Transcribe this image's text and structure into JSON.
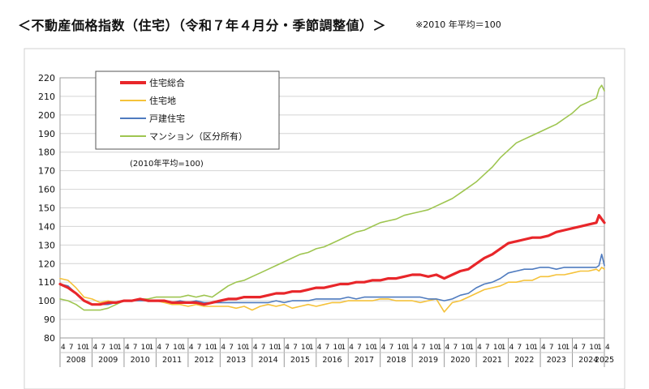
{
  "page": {
    "title": "＜不動産価格指数（住宅）（令和７年４月分・季節調整値）＞",
    "note": "※2010 年平均＝100"
  },
  "chart_data": {
    "type": "line",
    "ylim": [
      80,
      220
    ],
    "yticks": [
      80,
      90,
      100,
      110,
      120,
      130,
      140,
      150,
      160,
      170,
      180,
      190,
      200,
      210,
      220
    ],
    "grid": "horizontal",
    "legend_position": "top-left",
    "annotation": "(2010年平均=100)",
    "x_range": [
      "2008-04",
      "2025-04"
    ],
    "years": [
      "2008",
      "2009",
      "2010",
      "2011",
      "2012",
      "2013",
      "2014",
      "2015",
      "2016",
      "2017",
      "2018",
      "2019",
      "2020",
      "2021",
      "2022",
      "2023",
      "2024",
      "2025"
    ],
    "month_tick_labels": [
      "4",
      "7",
      "10",
      "1"
    ],
    "series": [
      {
        "name": "住宅総合",
        "color": "#e8262a",
        "points": [
          [
            "2008-04",
            109
          ],
          [
            "2008-07",
            107
          ],
          [
            "2008-10",
            104
          ],
          [
            "2009-01",
            100
          ],
          [
            "2009-04",
            98
          ],
          [
            "2009-07",
            98
          ],
          [
            "2009-10",
            99
          ],
          [
            "2010-01",
            99
          ],
          [
            "2010-04",
            100
          ],
          [
            "2010-07",
            100
          ],
          [
            "2010-10",
            101
          ],
          [
            "2011-01",
            100
          ],
          [
            "2011-04",
            100
          ],
          [
            "2011-07",
            100
          ],
          [
            "2011-10",
            99
          ],
          [
            "2012-01",
            99
          ],
          [
            "2012-04",
            99
          ],
          [
            "2012-07",
            99
          ],
          [
            "2012-10",
            98
          ],
          [
            "2013-01",
            99
          ],
          [
            "2013-04",
            100
          ],
          [
            "2013-07",
            101
          ],
          [
            "2013-10",
            101
          ],
          [
            "2014-01",
            102
          ],
          [
            "2014-04",
            102
          ],
          [
            "2014-07",
            102
          ],
          [
            "2014-10",
            103
          ],
          [
            "2015-01",
            104
          ],
          [
            "2015-04",
            104
          ],
          [
            "2015-07",
            105
          ],
          [
            "2015-10",
            105
          ],
          [
            "2016-01",
            106
          ],
          [
            "2016-04",
            107
          ],
          [
            "2016-07",
            107
          ],
          [
            "2016-10",
            108
          ],
          [
            "2017-01",
            109
          ],
          [
            "2017-04",
            109
          ],
          [
            "2017-07",
            110
          ],
          [
            "2017-10",
            110
          ],
          [
            "2018-01",
            111
          ],
          [
            "2018-04",
            111
          ],
          [
            "2018-07",
            112
          ],
          [
            "2018-10",
            112
          ],
          [
            "2019-01",
            113
          ],
          [
            "2019-04",
            114
          ],
          [
            "2019-07",
            114
          ],
          [
            "2019-10",
            113
          ],
          [
            "2020-01",
            114
          ],
          [
            "2020-04",
            112
          ],
          [
            "2020-07",
            114
          ],
          [
            "2020-10",
            116
          ],
          [
            "2021-01",
            117
          ],
          [
            "2021-04",
            120
          ],
          [
            "2021-07",
            123
          ],
          [
            "2021-10",
            125
          ],
          [
            "2022-01",
            128
          ],
          [
            "2022-04",
            131
          ],
          [
            "2022-07",
            132
          ],
          [
            "2022-10",
            133
          ],
          [
            "2023-01",
            134
          ],
          [
            "2023-04",
            134
          ],
          [
            "2023-07",
            135
          ],
          [
            "2023-10",
            137
          ],
          [
            "2024-01",
            138
          ],
          [
            "2024-04",
            139
          ],
          [
            "2024-07",
            140
          ],
          [
            "2024-10",
            141
          ],
          [
            "2025-01",
            142
          ],
          [
            "2025-02",
            146
          ],
          [
            "2025-03",
            144
          ],
          [
            "2025-04",
            142
          ]
        ]
      },
      {
        "name": "住宅地",
        "color": "#f5c23a",
        "points": [
          [
            "2008-04",
            112
          ],
          [
            "2008-07",
            111
          ],
          [
            "2008-10",
            107
          ],
          [
            "2009-01",
            102
          ],
          [
            "2009-04",
            101
          ],
          [
            "2009-07",
            99
          ],
          [
            "2009-10",
            100
          ],
          [
            "2010-01",
            99
          ],
          [
            "2010-04",
            100
          ],
          [
            "2010-07",
            100
          ],
          [
            "2010-10",
            101
          ],
          [
            "2011-01",
            100
          ],
          [
            "2011-04",
            100
          ],
          [
            "2011-07",
            99
          ],
          [
            "2011-10",
            98
          ],
          [
            "2012-01",
            98
          ],
          [
            "2012-04",
            97
          ],
          [
            "2012-07",
            98
          ],
          [
            "2012-10",
            97
          ],
          [
            "2013-01",
            97
          ],
          [
            "2013-04",
            97
          ],
          [
            "2013-07",
            97
          ],
          [
            "2013-10",
            96
          ],
          [
            "2014-01",
            97
          ],
          [
            "2014-04",
            95
          ],
          [
            "2014-07",
            97
          ],
          [
            "2014-10",
            98
          ],
          [
            "2015-01",
            97
          ],
          [
            "2015-04",
            98
          ],
          [
            "2015-07",
            96
          ],
          [
            "2015-10",
            97
          ],
          [
            "2016-01",
            98
          ],
          [
            "2016-04",
            97
          ],
          [
            "2016-07",
            98
          ],
          [
            "2016-10",
            99
          ],
          [
            "2017-01",
            99
          ],
          [
            "2017-04",
            100
          ],
          [
            "2017-07",
            100
          ],
          [
            "2017-10",
            100
          ],
          [
            "2018-01",
            100
          ],
          [
            "2018-04",
            101
          ],
          [
            "2018-07",
            101
          ],
          [
            "2018-10",
            100
          ],
          [
            "2019-01",
            100
          ],
          [
            "2019-04",
            100
          ],
          [
            "2019-07",
            99
          ],
          [
            "2019-10",
            100
          ],
          [
            "2020-01",
            101
          ],
          [
            "2020-04",
            94
          ],
          [
            "2020-07",
            99
          ],
          [
            "2020-10",
            100
          ],
          [
            "2021-01",
            102
          ],
          [
            "2021-04",
            104
          ],
          [
            "2021-07",
            106
          ],
          [
            "2021-10",
            107
          ],
          [
            "2022-01",
            108
          ],
          [
            "2022-04",
            110
          ],
          [
            "2022-07",
            110
          ],
          [
            "2022-10",
            111
          ],
          [
            "2023-01",
            111
          ],
          [
            "2023-04",
            113
          ],
          [
            "2023-07",
            113
          ],
          [
            "2023-10",
            114
          ],
          [
            "2024-01",
            114
          ],
          [
            "2024-04",
            115
          ],
          [
            "2024-07",
            116
          ],
          [
            "2024-10",
            116
          ],
          [
            "2025-01",
            117
          ],
          [
            "2025-02",
            116
          ],
          [
            "2025-03",
            118
          ],
          [
            "2025-04",
            117
          ]
        ]
      },
      {
        "name": "戸建住宅",
        "color": "#4f7bbf",
        "points": [
          [
            "2008-04",
            109
          ],
          [
            "2008-07",
            108
          ],
          [
            "2008-10",
            104
          ],
          [
            "2009-01",
            100
          ],
          [
            "2009-04",
            98
          ],
          [
            "2009-07",
            98
          ],
          [
            "2009-10",
            98
          ],
          [
            "2010-01",
            99
          ],
          [
            "2010-04",
            100
          ],
          [
            "2010-07",
            100
          ],
          [
            "2010-10",
            100
          ],
          [
            "2011-01",
            100
          ],
          [
            "2011-04",
            100
          ],
          [
            "2011-07",
            100
          ],
          [
            "2011-10",
            99
          ],
          [
            "2012-01",
            100
          ],
          [
            "2012-04",
            99
          ],
          [
            "2012-07",
            100
          ],
          [
            "2012-10",
            99
          ],
          [
            "2013-01",
            99
          ],
          [
            "2013-04",
            99
          ],
          [
            "2013-07",
            99
          ],
          [
            "2013-10",
            99
          ],
          [
            "2014-01",
            99
          ],
          [
            "2014-04",
            99
          ],
          [
            "2014-07",
            99
          ],
          [
            "2014-10",
            99
          ],
          [
            "2015-01",
            100
          ],
          [
            "2015-04",
            99
          ],
          [
            "2015-07",
            100
          ],
          [
            "2015-10",
            100
          ],
          [
            "2016-01",
            100
          ],
          [
            "2016-04",
            101
          ],
          [
            "2016-07",
            101
          ],
          [
            "2016-10",
            101
          ],
          [
            "2017-01",
            101
          ],
          [
            "2017-04",
            102
          ],
          [
            "2017-07",
            101
          ],
          [
            "2017-10",
            102
          ],
          [
            "2018-01",
            102
          ],
          [
            "2018-04",
            102
          ],
          [
            "2018-07",
            102
          ],
          [
            "2018-10",
            102
          ],
          [
            "2019-01",
            102
          ],
          [
            "2019-04",
            102
          ],
          [
            "2019-07",
            102
          ],
          [
            "2019-10",
            101
          ],
          [
            "2020-01",
            101
          ],
          [
            "2020-04",
            100
          ],
          [
            "2020-07",
            101
          ],
          [
            "2020-10",
            103
          ],
          [
            "2021-01",
            104
          ],
          [
            "2021-04",
            107
          ],
          [
            "2021-07",
            109
          ],
          [
            "2021-10",
            110
          ],
          [
            "2022-01",
            112
          ],
          [
            "2022-04",
            115
          ],
          [
            "2022-07",
            116
          ],
          [
            "2022-10",
            117
          ],
          [
            "2023-01",
            117
          ],
          [
            "2023-04",
            118
          ],
          [
            "2023-07",
            118
          ],
          [
            "2023-10",
            117
          ],
          [
            "2024-01",
            118
          ],
          [
            "2024-04",
            118
          ],
          [
            "2024-07",
            118
          ],
          [
            "2024-10",
            118
          ],
          [
            "2025-01",
            118
          ],
          [
            "2025-02",
            119
          ],
          [
            "2025-03",
            125
          ],
          [
            "2025-04",
            119
          ]
        ]
      },
      {
        "name": "マンション（区分所有）",
        "color": "#9ec550",
        "points": [
          [
            "2008-04",
            101
          ],
          [
            "2008-07",
            100
          ],
          [
            "2008-10",
            98
          ],
          [
            "2009-01",
            95
          ],
          [
            "2009-04",
            95
          ],
          [
            "2009-07",
            95
          ],
          [
            "2009-10",
            96
          ],
          [
            "2010-01",
            98
          ],
          [
            "2010-04",
            100
          ],
          [
            "2010-07",
            100
          ],
          [
            "2010-10",
            101
          ],
          [
            "2011-01",
            101
          ],
          [
            "2011-04",
            102
          ],
          [
            "2011-07",
            102
          ],
          [
            "2011-10",
            102
          ],
          [
            "2012-01",
            102
          ],
          [
            "2012-04",
            103
          ],
          [
            "2012-07",
            102
          ],
          [
            "2012-10",
            103
          ],
          [
            "2013-01",
            102
          ],
          [
            "2013-04",
            105
          ],
          [
            "2013-07",
            108
          ],
          [
            "2013-10",
            110
          ],
          [
            "2014-01",
            111
          ],
          [
            "2014-04",
            113
          ],
          [
            "2014-07",
            115
          ],
          [
            "2014-10",
            117
          ],
          [
            "2015-01",
            119
          ],
          [
            "2015-04",
            121
          ],
          [
            "2015-07",
            123
          ],
          [
            "2015-10",
            125
          ],
          [
            "2016-01",
            126
          ],
          [
            "2016-04",
            128
          ],
          [
            "2016-07",
            129
          ],
          [
            "2016-10",
            131
          ],
          [
            "2017-01",
            133
          ],
          [
            "2017-04",
            135
          ],
          [
            "2017-07",
            137
          ],
          [
            "2017-10",
            138
          ],
          [
            "2018-01",
            140
          ],
          [
            "2018-04",
            142
          ],
          [
            "2018-07",
            143
          ],
          [
            "2018-10",
            144
          ],
          [
            "2019-01",
            146
          ],
          [
            "2019-04",
            147
          ],
          [
            "2019-07",
            148
          ],
          [
            "2019-10",
            149
          ],
          [
            "2020-01",
            151
          ],
          [
            "2020-04",
            153
          ],
          [
            "2020-07",
            155
          ],
          [
            "2020-10",
            158
          ],
          [
            "2021-01",
            161
          ],
          [
            "2021-04",
            164
          ],
          [
            "2021-07",
            168
          ],
          [
            "2021-10",
            172
          ],
          [
            "2022-01",
            177
          ],
          [
            "2022-04",
            181
          ],
          [
            "2022-07",
            185
          ],
          [
            "2022-10",
            187
          ],
          [
            "2023-01",
            189
          ],
          [
            "2023-04",
            191
          ],
          [
            "2023-07",
            193
          ],
          [
            "2023-10",
            195
          ],
          [
            "2024-01",
            198
          ],
          [
            "2024-04",
            201
          ],
          [
            "2024-07",
            205
          ],
          [
            "2024-10",
            207
          ],
          [
            "2025-01",
            209
          ],
          [
            "2025-02",
            214
          ],
          [
            "2025-03",
            216
          ],
          [
            "2025-04",
            213
          ]
        ]
      }
    ]
  }
}
